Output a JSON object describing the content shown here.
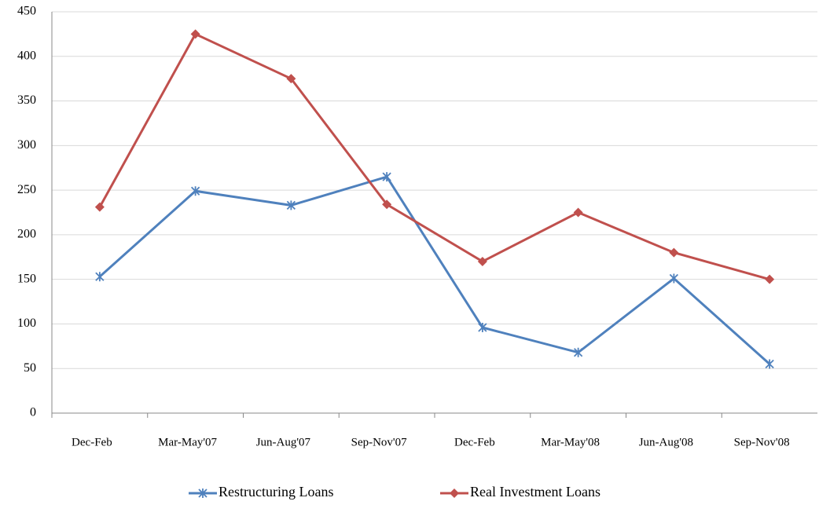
{
  "chart_data": {
    "type": "line",
    "categories": [
      "Dec-Feb",
      "Mar-May'07",
      "Jun-Aug'07",
      "Sep-Nov'07",
      "Dec-Feb",
      "Mar-May'08",
      "Jun-Aug'08",
      "Sep-Nov'08"
    ],
    "series": [
      {
        "name": "Restructuring Loans",
        "color": "#4f81bd",
        "marker": "star",
        "values": [
          153,
          249,
          233,
          265,
          96,
          68,
          151,
          55
        ]
      },
      {
        "name": "Real Investment Loans",
        "color": "#c0504d",
        "marker": "diamond",
        "values": [
          231,
          425,
          375,
          234,
          170,
          225,
          180,
          150
        ]
      }
    ],
    "ylim": [
      0,
      450
    ],
    "yticks": [
      0,
      50,
      100,
      150,
      200,
      250,
      300,
      350,
      400,
      450
    ],
    "grid": true,
    "legend": "bottom"
  }
}
